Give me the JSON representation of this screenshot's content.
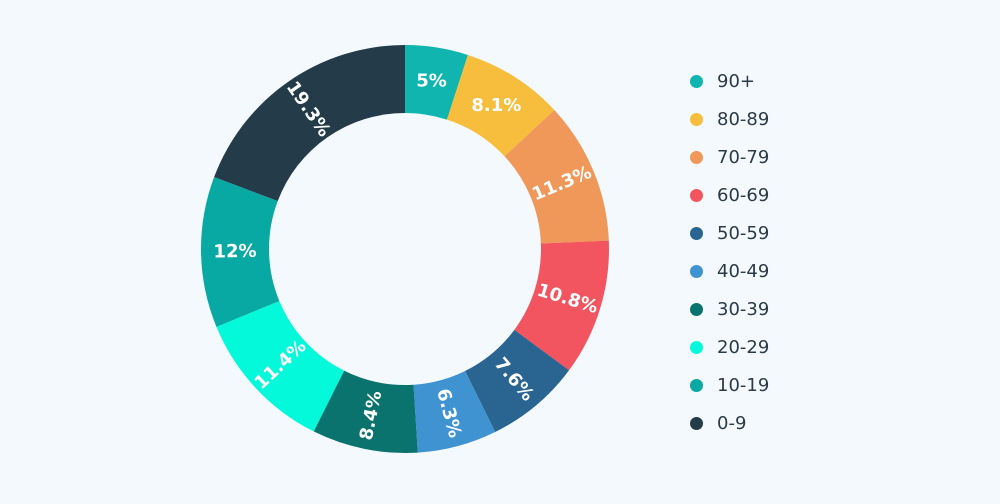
{
  "chart_data": {
    "type": "pie",
    "donut": true,
    "start": "top, clockwise",
    "categories": [
      "90+",
      "80-89",
      "70-79",
      "60-69",
      "50-59",
      "40-49",
      "30-39",
      "20-29",
      "10-19",
      "0-9"
    ],
    "values": [
      5,
      8.1,
      11.3,
      10.8,
      7.6,
      6.3,
      8.4,
      11.4,
      12,
      19.3
    ],
    "data_labels": [
      "5%",
      "8.1%",
      "11.3%",
      "10.8%",
      "7.6%",
      "6.3%",
      "8.4%",
      "11.4%",
      "12%",
      "19.3%"
    ],
    "colors": [
      "#0fb5ae",
      "#f6be3c",
      "#f0975a",
      "#f2555f",
      "#2a6491",
      "#3f93d0",
      "#0b736e",
      "#04f9db",
      "#08a8a3",
      "#243c4a"
    ],
    "legend_placement": "right"
  }
}
